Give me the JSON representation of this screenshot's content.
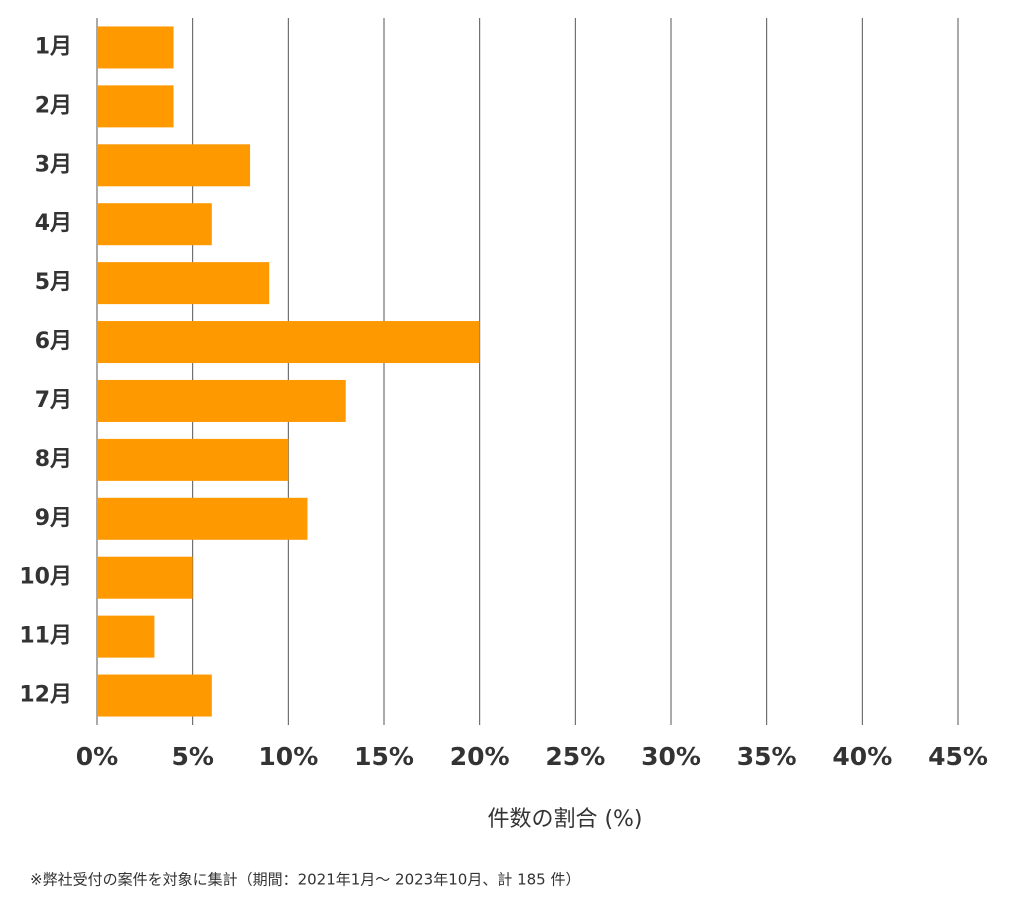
{
  "chart_data": {
    "type": "barh",
    "categories": [
      "1月",
      "2月",
      "3月",
      "4月",
      "5月",
      "6月",
      "7月",
      "8月",
      "9月",
      "10月",
      "11月",
      "12月"
    ],
    "values": [
      4.0,
      4.0,
      8.0,
      6.0,
      9.0,
      20.0,
      13.0,
      10.0,
      11.0,
      5.0,
      3.0,
      6.0
    ],
    "color": "#ff9900",
    "xlim": [
      0,
      45
    ],
    "xticks": [
      {
        "value": 0,
        "label": "0%"
      },
      {
        "value": 5,
        "label": "5%"
      },
      {
        "value": 10,
        "label": "10%"
      },
      {
        "value": 15,
        "label": "15%"
      },
      {
        "value": 20,
        "label": "20%"
      },
      {
        "value": 25,
        "label": "25%"
      },
      {
        "value": 30,
        "label": "30%"
      },
      {
        "value": 35,
        "label": "35%"
      },
      {
        "value": 40,
        "label": "40%"
      },
      {
        "value": 45,
        "label": "45%"
      }
    ],
    "x_label": "件数の割合 (%)",
    "footnote": "※弊社受付の案件を対象に集計（期間：2021年1月～ 2023年10月、計 185 件）",
    "grid": true
  }
}
